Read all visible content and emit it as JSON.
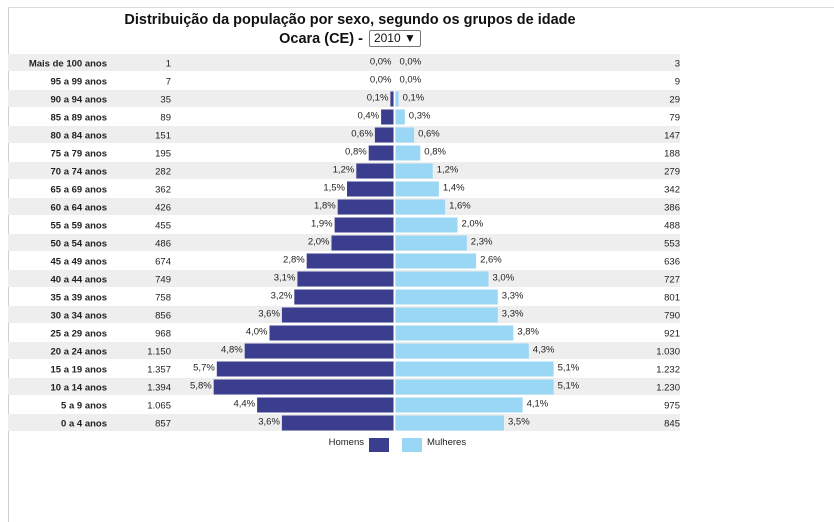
{
  "page": {
    "title_line1": "Distribuição da população por sexo, segundo os grupos de idade",
    "title_line2": "Ocara (CE) -",
    "year_selected": "2010",
    "dropdown_arrow": "▼"
  },
  "colors": {
    "male": "#3b3d8f",
    "female": "#9ad7f4",
    "row_shade": "#eeeeee"
  },
  "chart_data": {
    "type": "bar",
    "orientation": "horizontal-population-pyramid",
    "categories": [
      "Mais de 100 anos",
      "95 a 99 anos",
      "90 a 94 anos",
      "85 a 89 anos",
      "80 a 84 anos",
      "75 a 79 anos",
      "70 a 74 anos",
      "65 a 69 anos",
      "60 a 64 anos",
      "55 a 59 anos",
      "50 a 54 anos",
      "45 a 49 anos",
      "40 a 44 anos",
      "35 a 39 anos",
      "30 a 34 anos",
      "25 a 29 anos",
      "20 a 24 anos",
      "15 a 19 anos",
      "10 a 14 anos",
      "5 a 9 anos",
      "0 a 4 anos"
    ],
    "series": [
      {
        "name": "Homens",
        "counts": [
          "1",
          "7",
          "35",
          "89",
          "151",
          "195",
          "282",
          "362",
          "426",
          "455",
          "486",
          "674",
          "749",
          "758",
          "856",
          "968",
          "1.150",
          "1.357",
          "1.394",
          "1.065",
          "857"
        ],
        "percent_labels": [
          "0,0%",
          "0,0%",
          "0,1%",
          "0,4%",
          "0,6%",
          "0,8%",
          "1,2%",
          "1,5%",
          "1,8%",
          "1,9%",
          "2,0%",
          "2,8%",
          "3,1%",
          "3,2%",
          "3,6%",
          "4,0%",
          "4,8%",
          "5,7%",
          "5,8%",
          "4,4%",
          "3,6%"
        ],
        "values": [
          0.0,
          0.0,
          0.1,
          0.4,
          0.6,
          0.8,
          1.2,
          1.5,
          1.8,
          1.9,
          2.0,
          2.8,
          3.1,
          3.2,
          3.6,
          4.0,
          4.8,
          5.7,
          5.8,
          4.4,
          3.6
        ]
      },
      {
        "name": "Mulheres",
        "counts": [
          "3",
          "9",
          "29",
          "79",
          "147",
          "188",
          "279",
          "342",
          "386",
          "488",
          "553",
          "636",
          "727",
          "801",
          "790",
          "921",
          "1.030",
          "1.232",
          "1.230",
          "975",
          "845"
        ],
        "percent_labels": [
          "0,0%",
          "0,0%",
          "0,1%",
          "0,3%",
          "0,6%",
          "0,8%",
          "1,2%",
          "1,4%",
          "1,6%",
          "2,0%",
          "2,3%",
          "2,6%",
          "3,0%",
          "3,3%",
          "3,3%",
          "3,8%",
          "4,3%",
          "5,1%",
          "5,1%",
          "4,1%",
          "3,5%"
        ],
        "values": [
          0.0,
          0.0,
          0.1,
          0.3,
          0.6,
          0.8,
          1.2,
          1.4,
          1.6,
          2.0,
          2.3,
          2.6,
          3.0,
          3.3,
          3.3,
          3.8,
          4.3,
          5.1,
          5.1,
          4.1,
          3.5
        ]
      }
    ],
    "legend": {
      "position": "bottom-center",
      "entries": [
        "Homens",
        "Mulheres"
      ]
    },
    "value_unit": "%"
  }
}
